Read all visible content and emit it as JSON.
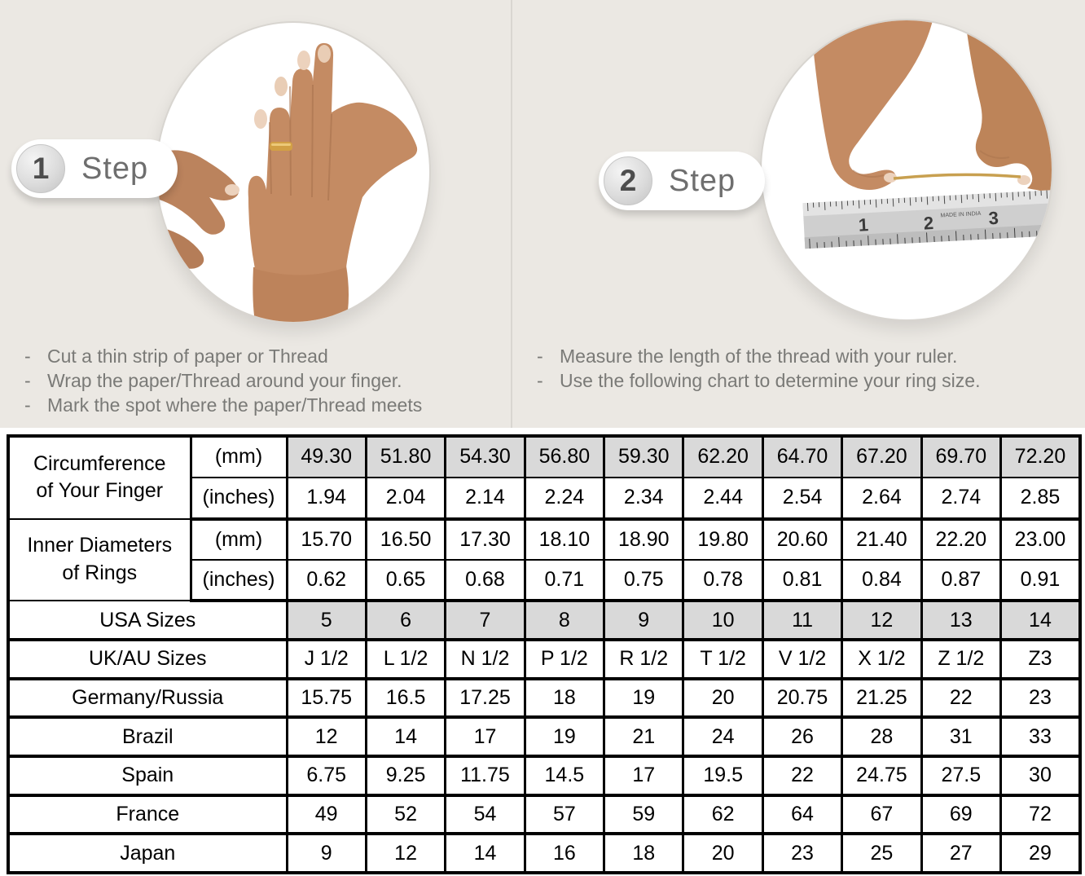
{
  "bullet": "-",
  "colors": {
    "panel_background": "#ebe8e3",
    "divider": "#d9d6d1",
    "circle_background": "#ffffff",
    "circle_border": "#d8d5d0",
    "badge_background": "#ffffff",
    "badge_number_color": "#4d4d4d",
    "step_label_color": "#6e6e6e",
    "instruction_text_color": "#7a7a77",
    "table_border": "#000000",
    "shaded_cell": "#d9d9d9",
    "skin_tone": "#c48b63",
    "ring_gold": "#d2a044",
    "ruler_metal": "#cfcfcf"
  },
  "steps": [
    {
      "number": "1",
      "label": "Step",
      "photo": "hand-with-ring-being-measured",
      "instructions": [
        "Cut a thin strip of paper or Thread",
        "Wrap the paper/Thread around your finger.",
        "Mark the spot where the paper/Thread meets"
      ]
    },
    {
      "number": "2",
      "label": "Step",
      "photo": "hands-holding-thread-over-ruler",
      "ruler_numbers": [
        "1",
        "2",
        "3"
      ],
      "ruler_small_text": "MADE IN INDIA",
      "instructions": [
        "Measure the length of the thread with your ruler.",
        "Use the following chart to determine your ring size."
      ]
    }
  ],
  "chart_data": {
    "type": "table",
    "columns": 10,
    "groups": [
      {
        "label": "Circumference of Your Finger",
        "label_lines": [
          "Circumference",
          "of Your Finger"
        ],
        "rows": [
          {
            "unit": "(mm)",
            "shaded": true,
            "values": [
              "49.30",
              "51.80",
              "54.30",
              "56.80",
              "59.30",
              "62.20",
              "64.70",
              "67.20",
              "69.70",
              "72.20"
            ]
          },
          {
            "unit": "(inches)",
            "shaded": false,
            "values": [
              "1.94",
              "2.04",
              "2.14",
              "2.24",
              "2.34",
              "2.44",
              "2.54",
              "2.64",
              "2.74",
              "2.85"
            ]
          }
        ]
      },
      {
        "label": "Inner Diameters of Rings",
        "label_lines": [
          "Inner Diameters",
          "of Rings"
        ],
        "rows": [
          {
            "unit": "(mm)",
            "shaded": false,
            "values": [
              "15.70",
              "16.50",
              "17.30",
              "18.10",
              "18.90",
              "19.80",
              "20.60",
              "21.40",
              "22.20",
              "23.00"
            ]
          },
          {
            "unit": "(inches)",
            "shaded": false,
            "values": [
              "0.62",
              "0.65",
              "0.68",
              "0.71",
              "0.75",
              "0.78",
              "0.81",
              "0.84",
              "0.87",
              "0.91"
            ]
          }
        ]
      }
    ],
    "size_rows": [
      {
        "label": "USA Sizes",
        "shaded": true,
        "values": [
          "5",
          "6",
          "7",
          "8",
          "9",
          "10",
          "11",
          "12",
          "13",
          "14"
        ]
      },
      {
        "label": "UK/AU Sizes",
        "shaded": false,
        "values": [
          "J 1/2",
          "L 1/2",
          "N 1/2",
          "P 1/2",
          "R 1/2",
          "T 1/2",
          "V 1/2",
          "X 1/2",
          "Z 1/2",
          "Z3"
        ]
      },
      {
        "label": "Germany/Russia",
        "shaded": false,
        "values": [
          "15.75",
          "16.5",
          "17.25",
          "18",
          "19",
          "20",
          "20.75",
          "21.25",
          "22",
          "23"
        ]
      },
      {
        "label": "Brazil",
        "shaded": false,
        "values": [
          "12",
          "14",
          "17",
          "19",
          "21",
          "24",
          "26",
          "28",
          "31",
          "33"
        ]
      },
      {
        "label": "Spain",
        "shaded": false,
        "values": [
          "6.75",
          "9.25",
          "11.75",
          "14.5",
          "17",
          "19.5",
          "22",
          "24.75",
          "27.5",
          "30"
        ]
      },
      {
        "label": "France",
        "shaded": false,
        "values": [
          "49",
          "52",
          "54",
          "57",
          "59",
          "62",
          "64",
          "67",
          "69",
          "72"
        ]
      },
      {
        "label": "Japan",
        "shaded": false,
        "values": [
          "9",
          "12",
          "14",
          "16",
          "18",
          "20",
          "23",
          "25",
          "27",
          "29"
        ]
      }
    ]
  }
}
